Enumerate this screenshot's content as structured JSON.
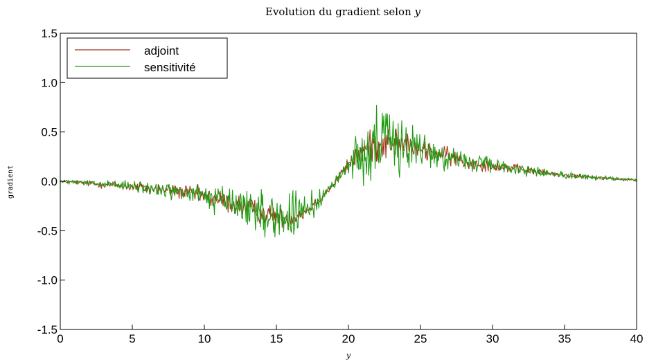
{
  "chart_data": {
    "type": "line",
    "title_text": "Evolution du gradient selon ",
    "title_var": "y",
    "xlabel": "y",
    "ylabel": "gradient",
    "xlim": [
      0,
      40
    ],
    "ylim": [
      -1.5,
      1.5
    ],
    "xticks": [
      "0",
      "5",
      "10",
      "15",
      "20",
      "25",
      "30",
      "35",
      "40"
    ],
    "yticks": [
      "1.5",
      "1.0",
      "0.5",
      "0.0",
      "-0.5",
      "-1.0",
      "-1.5"
    ],
    "grid": false,
    "legend_position": "top-left",
    "series": [
      {
        "name": "adjoint",
        "color": "#a0381a",
        "x": [
          0,
          2,
          4,
          6,
          8,
          10,
          11,
          12,
          13,
          14,
          15,
          16,
          17,
          18,
          19,
          19.5,
          20,
          21,
          22,
          23,
          24,
          25,
          26,
          27,
          28,
          30,
          32,
          34,
          36,
          38,
          40
        ],
        "y": [
          0.0,
          -0.02,
          -0.04,
          -0.07,
          -0.1,
          -0.15,
          -0.19,
          -0.23,
          -0.27,
          -0.32,
          -0.36,
          -0.37,
          -0.31,
          -0.18,
          -0.03,
          0.08,
          0.17,
          0.3,
          0.38,
          0.4,
          0.37,
          0.32,
          0.28,
          0.25,
          0.2,
          0.16,
          0.12,
          0.08,
          0.05,
          0.03,
          0.01
        ],
        "noise": [
          0.02,
          0.04,
          0.06,
          0.08,
          0.1,
          0.12,
          0.15,
          0.15,
          0.16,
          0.14,
          0.14,
          0.12,
          0.1,
          0.06,
          0.04,
          0.06,
          0.1,
          0.18,
          0.25,
          0.22,
          0.17,
          0.14,
          0.13,
          0.12,
          0.1,
          0.08,
          0.06,
          0.04,
          0.03,
          0.02,
          0.01
        ]
      },
      {
        "name": "sensitivité",
        "color": "#1f9a10",
        "x": [
          0,
          2,
          4,
          6,
          8,
          10,
          11,
          12,
          13,
          14,
          15,
          16,
          17,
          18,
          19,
          19.5,
          20,
          21,
          22,
          23,
          24,
          25,
          26,
          27,
          28,
          30,
          32,
          34,
          36,
          38,
          40
        ],
        "y": [
          0.0,
          -0.02,
          -0.04,
          -0.07,
          -0.1,
          -0.15,
          -0.19,
          -0.23,
          -0.27,
          -0.32,
          -0.36,
          -0.37,
          -0.31,
          -0.18,
          -0.03,
          0.08,
          0.17,
          0.3,
          0.38,
          0.4,
          0.37,
          0.32,
          0.28,
          0.25,
          0.2,
          0.16,
          0.12,
          0.08,
          0.05,
          0.03,
          0.01
        ],
        "noise": [
          0.02,
          0.04,
          0.06,
          0.09,
          0.12,
          0.15,
          0.2,
          0.25,
          0.3,
          0.32,
          0.33,
          0.3,
          0.24,
          0.12,
          0.06,
          0.1,
          0.2,
          0.4,
          0.5,
          0.45,
          0.32,
          0.25,
          0.22,
          0.18,
          0.14,
          0.1,
          0.07,
          0.05,
          0.04,
          0.03,
          0.02
        ]
      }
    ]
  }
}
